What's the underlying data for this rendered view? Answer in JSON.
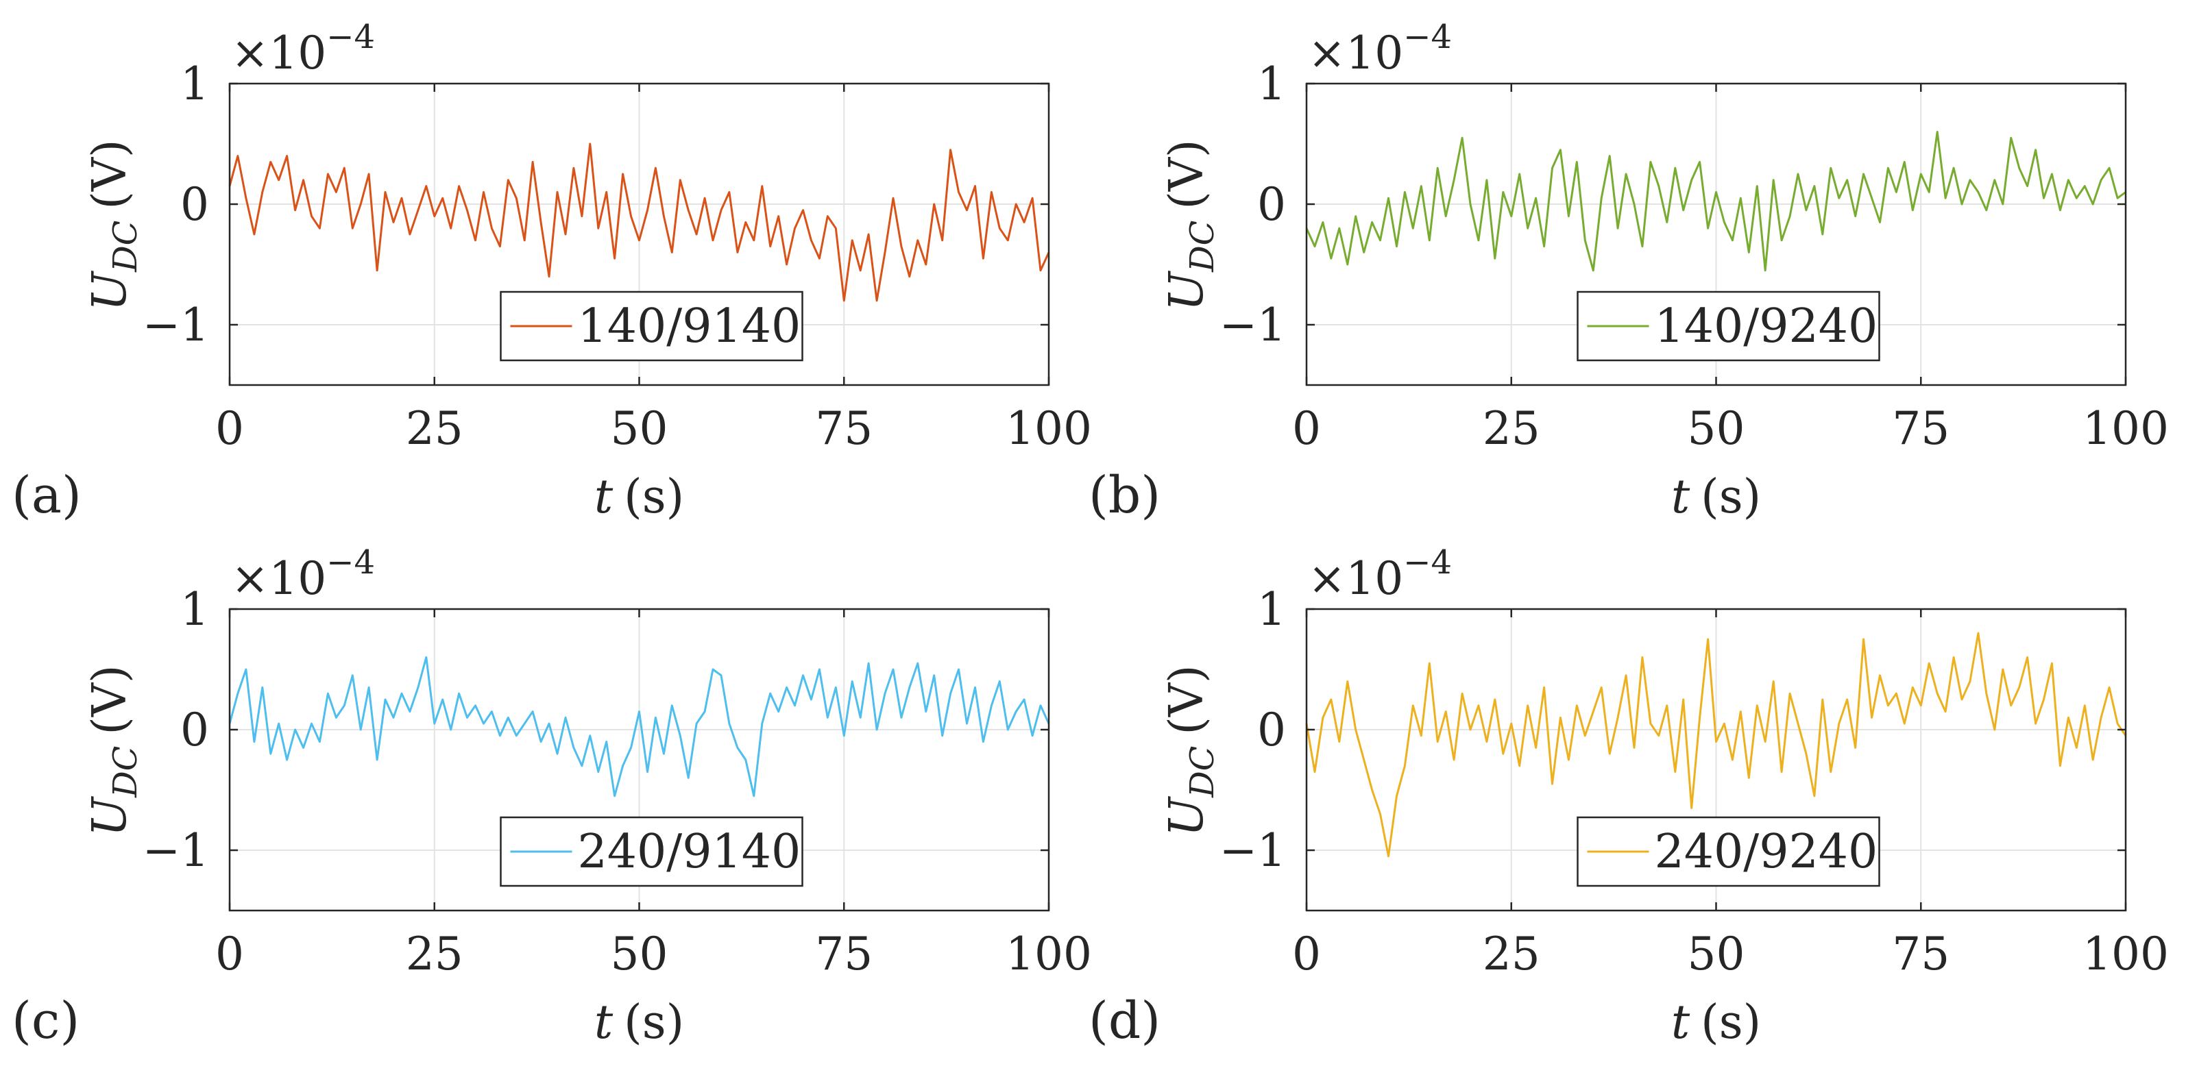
{
  "figure": {
    "title": ""
  },
  "chart_data": [
    {
      "type": "line",
      "panel_label": "(a)",
      "legend": "140/9140",
      "color": "#d95319",
      "xlabel": "t (s)",
      "xlabel_var": "t",
      "xlabel_unit": "(s)",
      "ylabel_var": "U",
      "ylabel_sub": "DC",
      "ylabel_unit": "(V)",
      "exponent_label": "×10",
      "exponent_power": "−4",
      "xlim": [
        0,
        100
      ],
      "ylim": [
        -1.5,
        1
      ],
      "xticks": [
        0,
        25,
        50,
        75,
        100
      ],
      "xtick_labels": [
        "0",
        "25",
        "50",
        "75",
        "100"
      ],
      "yticks": [
        1,
        0,
        -1
      ],
      "ytick_labels": [
        "1",
        "0",
        "−1"
      ],
      "grid": true,
      "legend_location": "bottom-center",
      "series": [
        {
          "name": "140/9140",
          "x": [
            0,
            1,
            2,
            3,
            4,
            5,
            6,
            7,
            8,
            9,
            10,
            11,
            12,
            13,
            14,
            15,
            16,
            17,
            18,
            19,
            20,
            21,
            22,
            23,
            24,
            25,
            26,
            27,
            28,
            29,
            30,
            31,
            32,
            33,
            34,
            35,
            36,
            37,
            38,
            39,
            40,
            41,
            42,
            43,
            44,
            45,
            46,
            47,
            48,
            49,
            50,
            51,
            52,
            53,
            54,
            55,
            56,
            57,
            58,
            59,
            60,
            61,
            62,
            63,
            64,
            65,
            66,
            67,
            68,
            69,
            70,
            71,
            72,
            73,
            74,
            75,
            76,
            77,
            78,
            79,
            80,
            81,
            82,
            83,
            84,
            85,
            86,
            87,
            88,
            89,
            90,
            91,
            92,
            93,
            94,
            95,
            96,
            97,
            98,
            99,
            100
          ],
          "values": [
            0.15,
            0.4,
            0.05,
            -0.25,
            0.1,
            0.35,
            0.2,
            0.4,
            -0.05,
            0.2,
            -0.1,
            -0.2,
            0.25,
            0.1,
            0.3,
            -0.2,
            0.0,
            0.25,
            -0.55,
            0.1,
            -0.15,
            0.05,
            -0.25,
            -0.05,
            0.15,
            -0.1,
            0.05,
            -0.2,
            0.15,
            -0.05,
            -0.3,
            0.1,
            -0.2,
            -0.35,
            0.2,
            0.05,
            -0.3,
            0.35,
            -0.15,
            -0.6,
            0.1,
            -0.25,
            0.3,
            -0.1,
            0.5,
            -0.2,
            0.1,
            -0.45,
            0.25,
            -0.1,
            -0.3,
            -0.05,
            0.3,
            -0.1,
            -0.4,
            0.2,
            -0.05,
            -0.25,
            0.05,
            -0.3,
            -0.05,
            0.1,
            -0.4,
            -0.15,
            -0.3,
            0.15,
            -0.35,
            -0.1,
            -0.5,
            -0.2,
            -0.05,
            -0.3,
            -0.45,
            -0.1,
            -0.2,
            -0.8,
            -0.3,
            -0.55,
            -0.25,
            -0.8,
            -0.4,
            0.05,
            -0.35,
            -0.6,
            -0.3,
            -0.5,
            0.0,
            -0.3,
            0.45,
            0.1,
            -0.05,
            0.15,
            -0.45,
            0.1,
            -0.2,
            -0.3,
            0.0,
            -0.15,
            0.05,
            -0.55,
            -0.4
          ]
        }
      ]
    },
    {
      "type": "line",
      "panel_label": "(b)",
      "legend": "140/9240",
      "color": "#77ac30",
      "xlabel": "t (s)",
      "xlabel_var": "t",
      "xlabel_unit": "(s)",
      "ylabel_var": "U",
      "ylabel_sub": "DC",
      "ylabel_unit": "(V)",
      "exponent_label": "×10",
      "exponent_power": "−4",
      "xlim": [
        0,
        100
      ],
      "ylim": [
        -1.5,
        1
      ],
      "xticks": [
        0,
        25,
        50,
        75,
        100
      ],
      "xtick_labels": [
        "0",
        "25",
        "50",
        "75",
        "100"
      ],
      "yticks": [
        1,
        0,
        -1
      ],
      "ytick_labels": [
        "1",
        "0",
        "−1"
      ],
      "grid": true,
      "legend_location": "bottom-center",
      "series": [
        {
          "name": "140/9240",
          "x": [
            0,
            1,
            2,
            3,
            4,
            5,
            6,
            7,
            8,
            9,
            10,
            11,
            12,
            13,
            14,
            15,
            16,
            17,
            18,
            19,
            20,
            21,
            22,
            23,
            24,
            25,
            26,
            27,
            28,
            29,
            30,
            31,
            32,
            33,
            34,
            35,
            36,
            37,
            38,
            39,
            40,
            41,
            42,
            43,
            44,
            45,
            46,
            47,
            48,
            49,
            50,
            51,
            52,
            53,
            54,
            55,
            56,
            57,
            58,
            59,
            60,
            61,
            62,
            63,
            64,
            65,
            66,
            67,
            68,
            69,
            70,
            71,
            72,
            73,
            74,
            75,
            76,
            77,
            78,
            79,
            80,
            81,
            82,
            83,
            84,
            85,
            86,
            87,
            88,
            89,
            90,
            91,
            92,
            93,
            94,
            95,
            96,
            97,
            98,
            99,
            100
          ],
          "values": [
            -0.2,
            -0.35,
            -0.15,
            -0.45,
            -0.2,
            -0.5,
            -0.1,
            -0.4,
            -0.15,
            -0.3,
            0.05,
            -0.35,
            0.1,
            -0.2,
            0.15,
            -0.3,
            0.3,
            -0.1,
            0.2,
            0.55,
            0.0,
            -0.3,
            0.2,
            -0.45,
            0.1,
            -0.1,
            0.25,
            -0.2,
            0.05,
            -0.35,
            0.3,
            0.45,
            -0.1,
            0.35,
            -0.3,
            -0.55,
            0.05,
            0.4,
            -0.2,
            0.25,
            0.0,
            -0.35,
            0.35,
            0.15,
            -0.15,
            0.3,
            -0.05,
            0.2,
            0.35,
            -0.2,
            0.1,
            -0.15,
            -0.3,
            0.05,
            -0.4,
            0.15,
            -0.55,
            0.2,
            -0.3,
            -0.1,
            0.25,
            -0.05,
            0.15,
            -0.25,
            0.3,
            0.05,
            0.2,
            -0.1,
            0.25,
            0.05,
            -0.15,
            0.3,
            0.1,
            0.35,
            -0.05,
            0.25,
            0.1,
            0.6,
            0.05,
            0.3,
            0.0,
            0.2,
            0.1,
            -0.05,
            0.2,
            0.0,
            0.55,
            0.3,
            0.15,
            0.45,
            0.05,
            0.25,
            -0.05,
            0.2,
            0.05,
            0.15,
            0.0,
            0.2,
            0.3,
            0.05,
            0.1
          ]
        }
      ]
    },
    {
      "type": "line",
      "panel_label": "(c)",
      "legend": "240/9140",
      "color": "#4dbeee",
      "xlabel": "t (s)",
      "xlabel_var": "t",
      "xlabel_unit": "(s)",
      "ylabel_var": "U",
      "ylabel_sub": "DC",
      "ylabel_unit": "(V)",
      "exponent_label": "×10",
      "exponent_power": "−4",
      "xlim": [
        0,
        100
      ],
      "ylim": [
        -1.5,
        1
      ],
      "xticks": [
        0,
        25,
        50,
        75,
        100
      ],
      "xtick_labels": [
        "0",
        "25",
        "50",
        "75",
        "100"
      ],
      "yticks": [
        1,
        0,
        -1
      ],
      "ytick_labels": [
        "1",
        "0",
        "−1"
      ],
      "grid": true,
      "legend_location": "bottom-center",
      "series": [
        {
          "name": "240/9140",
          "x": [
            0,
            1,
            2,
            3,
            4,
            5,
            6,
            7,
            8,
            9,
            10,
            11,
            12,
            13,
            14,
            15,
            16,
            17,
            18,
            19,
            20,
            21,
            22,
            23,
            24,
            25,
            26,
            27,
            28,
            29,
            30,
            31,
            32,
            33,
            34,
            35,
            36,
            37,
            38,
            39,
            40,
            41,
            42,
            43,
            44,
            45,
            46,
            47,
            48,
            49,
            50,
            51,
            52,
            53,
            54,
            55,
            56,
            57,
            58,
            59,
            60,
            61,
            62,
            63,
            64,
            65,
            66,
            67,
            68,
            69,
            70,
            71,
            72,
            73,
            74,
            75,
            76,
            77,
            78,
            79,
            80,
            81,
            82,
            83,
            84,
            85,
            86,
            87,
            88,
            89,
            90,
            91,
            92,
            93,
            94,
            95,
            96,
            97,
            98,
            99,
            100
          ],
          "values": [
            0.05,
            0.3,
            0.5,
            -0.1,
            0.35,
            -0.2,
            0.05,
            -0.25,
            0.0,
            -0.15,
            0.05,
            -0.1,
            0.3,
            0.1,
            0.2,
            0.45,
            0.0,
            0.35,
            -0.25,
            0.25,
            0.1,
            0.3,
            0.15,
            0.35,
            0.6,
            0.05,
            0.25,
            0.0,
            0.3,
            0.1,
            0.2,
            0.05,
            0.15,
            -0.05,
            0.1,
            -0.05,
            0.05,
            0.15,
            -0.1,
            0.05,
            -0.2,
            0.1,
            -0.15,
            -0.3,
            -0.05,
            -0.35,
            -0.1,
            -0.55,
            -0.3,
            -0.15,
            0.15,
            -0.35,
            0.1,
            -0.2,
            0.2,
            -0.05,
            -0.4,
            0.05,
            0.15,
            0.5,
            0.45,
            0.05,
            -0.15,
            -0.25,
            -0.55,
            0.05,
            0.3,
            0.15,
            0.35,
            0.2,
            0.45,
            0.25,
            0.5,
            0.1,
            0.35,
            -0.05,
            0.4,
            0.1,
            0.55,
            0.0,
            0.3,
            0.5,
            0.1,
            0.35,
            0.55,
            0.15,
            0.45,
            -0.05,
            0.3,
            0.5,
            0.05,
            0.35,
            -0.1,
            0.2,
            0.4,
            0.0,
            0.15,
            0.25,
            -0.05,
            0.2,
            0.05
          ]
        }
      ]
    },
    {
      "type": "line",
      "panel_label": "(d)",
      "legend": "240/9240",
      "color": "#edb120",
      "xlabel": "t (s)",
      "xlabel_var": "t",
      "xlabel_unit": "(s)",
      "ylabel_var": "U",
      "ylabel_sub": "DC",
      "ylabel_unit": "(V)",
      "exponent_label": "×10",
      "exponent_power": "−4",
      "xlim": [
        0,
        100
      ],
      "ylim": [
        -1.5,
        1
      ],
      "xticks": [
        0,
        25,
        50,
        75,
        100
      ],
      "xtick_labels": [
        "0",
        "25",
        "50",
        "75",
        "100"
      ],
      "yticks": [
        1,
        0,
        -1
      ],
      "ytick_labels": [
        "1",
        "0",
        "−1"
      ],
      "grid": true,
      "legend_location": "bottom-center",
      "series": [
        {
          "name": "240/9240",
          "x": [
            0,
            1,
            2,
            3,
            4,
            5,
            6,
            7,
            8,
            9,
            10,
            11,
            12,
            13,
            14,
            15,
            16,
            17,
            18,
            19,
            20,
            21,
            22,
            23,
            24,
            25,
            26,
            27,
            28,
            29,
            30,
            31,
            32,
            33,
            34,
            35,
            36,
            37,
            38,
            39,
            40,
            41,
            42,
            43,
            44,
            45,
            46,
            47,
            48,
            49,
            50,
            51,
            52,
            53,
            54,
            55,
            56,
            57,
            58,
            59,
            60,
            61,
            62,
            63,
            64,
            65,
            66,
            67,
            68,
            69,
            70,
            71,
            72,
            73,
            74,
            75,
            76,
            77,
            78,
            79,
            80,
            81,
            82,
            83,
            84,
            85,
            86,
            87,
            88,
            89,
            90,
            91,
            92,
            93,
            94,
            95,
            96,
            97,
            98,
            99,
            100
          ],
          "values": [
            0.05,
            -0.35,
            0.1,
            0.25,
            -0.1,
            0.4,
            0.0,
            -0.25,
            -0.5,
            -0.7,
            -1.05,
            -0.55,
            -0.3,
            0.2,
            -0.05,
            0.55,
            -0.1,
            0.15,
            -0.25,
            0.3,
            0.0,
            0.2,
            -0.1,
            0.25,
            -0.2,
            0.05,
            -0.3,
            0.2,
            -0.15,
            0.35,
            -0.45,
            0.1,
            -0.25,
            0.2,
            -0.05,
            0.15,
            0.35,
            -0.2,
            0.1,
            0.45,
            -0.15,
            0.6,
            0.05,
            -0.05,
            0.2,
            -0.35,
            0.25,
            -0.65,
            0.1,
            0.75,
            -0.1,
            0.05,
            -0.25,
            0.15,
            -0.4,
            0.2,
            -0.1,
            0.4,
            -0.35,
            0.3,
            0.05,
            -0.2,
            -0.55,
            0.25,
            -0.35,
            0.05,
            0.25,
            -0.15,
            0.75,
            0.1,
            0.45,
            0.2,
            0.3,
            0.05,
            0.35,
            0.2,
            0.55,
            0.3,
            0.15,
            0.6,
            0.25,
            0.4,
            0.8,
            0.3,
            0.0,
            0.5,
            0.2,
            0.35,
            0.6,
            0.05,
            0.25,
            0.55,
            -0.3,
            0.1,
            -0.15,
            0.2,
            -0.25,
            0.1,
            0.35,
            0.05,
            -0.05
          ]
        }
      ]
    }
  ]
}
